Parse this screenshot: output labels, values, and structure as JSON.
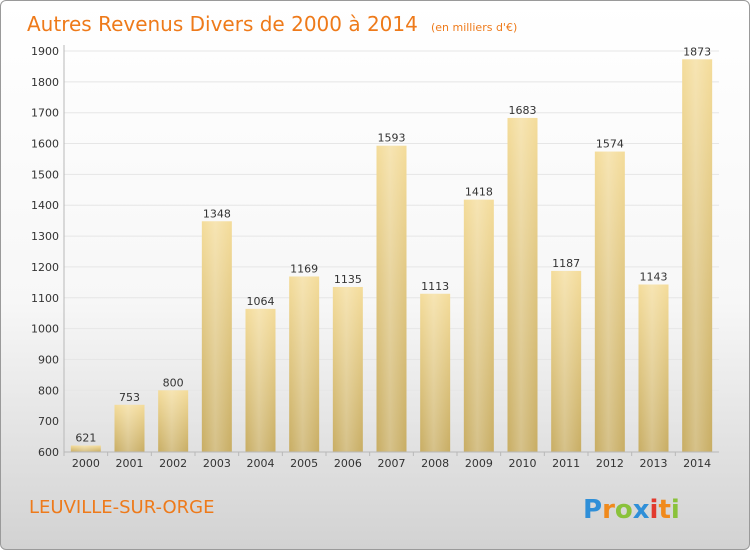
{
  "chart_data": {
    "type": "bar",
    "title": "Autres Revenus Divers de 2000 à 2014",
    "subtitle": "(en milliers d'€)",
    "categories": [
      "2000",
      "2001",
      "2002",
      "2003",
      "2004",
      "2005",
      "2006",
      "2007",
      "2008",
      "2009",
      "2010",
      "2011",
      "2012",
      "2013",
      "2014"
    ],
    "values": [
      621,
      753,
      800,
      1348,
      1064,
      1169,
      1135,
      1593,
      1113,
      1418,
      1683,
      1187,
      1574,
      1143,
      1873
    ],
    "ylim": [
      600,
      1900
    ],
    "yticks": [
      600,
      700,
      800,
      900,
      1000,
      1100,
      1200,
      1300,
      1400,
      1500,
      1600,
      1700,
      1800,
      1900
    ],
    "grid": true,
    "xlabel": "",
    "ylabel": ""
  },
  "footer": {
    "city": "LEUVILLE-SUR-ORGE",
    "logo_letters": [
      "P",
      "r",
      "o",
      "x",
      "i",
      "t",
      "i"
    ]
  },
  "colors": {
    "title": "#ee7a1a",
    "bar_top": "#f4dc9a",
    "bar_bottom": "#c8ad63",
    "grid": "#e6e6e6",
    "logo": [
      "#2f8fd8",
      "#f08a1c",
      "#8ac23b",
      "#2f8fd8",
      "#e23a2e",
      "#f08a1c",
      "#8ac23b"
    ]
  }
}
